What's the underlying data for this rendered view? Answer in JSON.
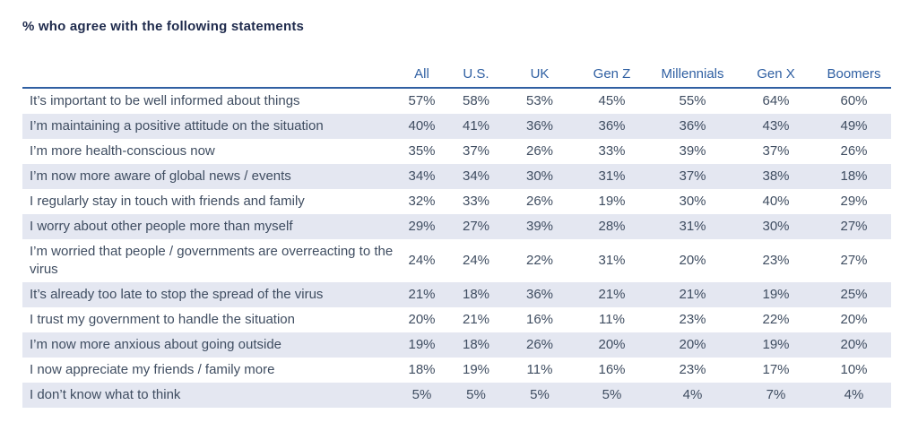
{
  "title": "% who agree with the following statements",
  "colors": {
    "title_text": "#1e2a4c",
    "header_text": "#2f5fa2",
    "header_rule": "#2f5fa2",
    "body_text": "#3f4d61",
    "row_stripe": "#e4e7f1",
    "background": "#ffffff"
  },
  "table": {
    "columns": [
      "All",
      "U.S.",
      "UK",
      "Gen Z",
      "Millennials",
      "Gen X",
      "Boomers"
    ],
    "rows": [
      {
        "label": "It’s important to be well informed about things",
        "values": [
          "57%",
          "58%",
          "53%",
          "45%",
          "55%",
          "64%",
          "60%"
        ]
      },
      {
        "label": "I’m maintaining a positive attitude on the situation",
        "values": [
          "40%",
          "41%",
          "36%",
          "36%",
          "36%",
          "43%",
          "49%"
        ]
      },
      {
        "label": "I’m more health-conscious now",
        "values": [
          "35%",
          "37%",
          "26%",
          "33%",
          "39%",
          "37%",
          "26%"
        ]
      },
      {
        "label": "I’m now more aware of global news / events",
        "values": [
          "34%",
          "34%",
          "30%",
          "31%",
          "37%",
          "38%",
          "18%"
        ]
      },
      {
        "label": "I regularly stay in touch with friends and family",
        "values": [
          "32%",
          "33%",
          "26%",
          "19%",
          "30%",
          "40%",
          "29%"
        ]
      },
      {
        "label": "I worry about other people more than myself",
        "values": [
          "29%",
          "27%",
          "39%",
          "28%",
          "31%",
          "30%",
          "27%"
        ]
      },
      {
        "label": "I’m worried that people / governments are overreacting to the virus",
        "values": [
          "24%",
          "24%",
          "22%",
          "31%",
          "20%",
          "23%",
          "27%"
        ]
      },
      {
        "label": "It’s already too late to stop the spread of the virus",
        "values": [
          "21%",
          "18%",
          "36%",
          "21%",
          "21%",
          "19%",
          "25%"
        ]
      },
      {
        "label": "I trust my government to handle the situation",
        "values": [
          "20%",
          "21%",
          "16%",
          "11%",
          "23%",
          "22%",
          "20%"
        ]
      },
      {
        "label": "I’m now more anxious about going outside",
        "values": [
          "19%",
          "18%",
          "26%",
          "20%",
          "20%",
          "19%",
          "20%"
        ]
      },
      {
        "label": "I now appreciate my friends / family more",
        "values": [
          "18%",
          "19%",
          "11%",
          "16%",
          "23%",
          "17%",
          "10%"
        ]
      },
      {
        "label": "I don’t know what to think",
        "values": [
          "5%",
          "5%",
          "5%",
          "5%",
          "4%",
          "7%",
          "4%"
        ]
      }
    ]
  },
  "chart_data": {
    "type": "table",
    "title": "% who agree with the following statements",
    "columns": [
      "All",
      "U.S.",
      "UK",
      "Gen Z",
      "Millennials",
      "Gen X",
      "Boomers"
    ],
    "unit": "percent",
    "rows": [
      {
        "statement": "It’s important to be well informed about things",
        "values_percent": [
          57,
          58,
          53,
          45,
          55,
          64,
          60
        ]
      },
      {
        "statement": "I’m maintaining a positive attitude on the situation",
        "values_percent": [
          40,
          41,
          36,
          36,
          36,
          43,
          49
        ]
      },
      {
        "statement": "I’m more health-conscious now",
        "values_percent": [
          35,
          37,
          26,
          33,
          39,
          37,
          26
        ]
      },
      {
        "statement": "I’m now more aware of global news / events",
        "values_percent": [
          34,
          34,
          30,
          31,
          37,
          38,
          18
        ]
      },
      {
        "statement": "I regularly stay in touch with friends and family",
        "values_percent": [
          32,
          33,
          26,
          19,
          30,
          40,
          29
        ]
      },
      {
        "statement": "I worry about other people more than myself",
        "values_percent": [
          29,
          27,
          39,
          28,
          31,
          30,
          27
        ]
      },
      {
        "statement": "I’m worried that people / governments are overreacting to the virus",
        "values_percent": [
          24,
          24,
          22,
          31,
          20,
          23,
          27
        ]
      },
      {
        "statement": "It’s already too late to stop the spread of the virus",
        "values_percent": [
          21,
          18,
          36,
          21,
          21,
          19,
          25
        ]
      },
      {
        "statement": "I trust my government to handle the situation",
        "values_percent": [
          20,
          21,
          16,
          11,
          23,
          22,
          20
        ]
      },
      {
        "statement": "I’m now more anxious about going outside",
        "values_percent": [
          19,
          18,
          26,
          20,
          20,
          19,
          20
        ]
      },
      {
        "statement": "I now appreciate my friends / family more",
        "values_percent": [
          18,
          19,
          11,
          16,
          23,
          17,
          10
        ]
      },
      {
        "statement": "I don’t know what to think",
        "values_percent": [
          5,
          5,
          5,
          5,
          4,
          7,
          4
        ]
      }
    ]
  }
}
